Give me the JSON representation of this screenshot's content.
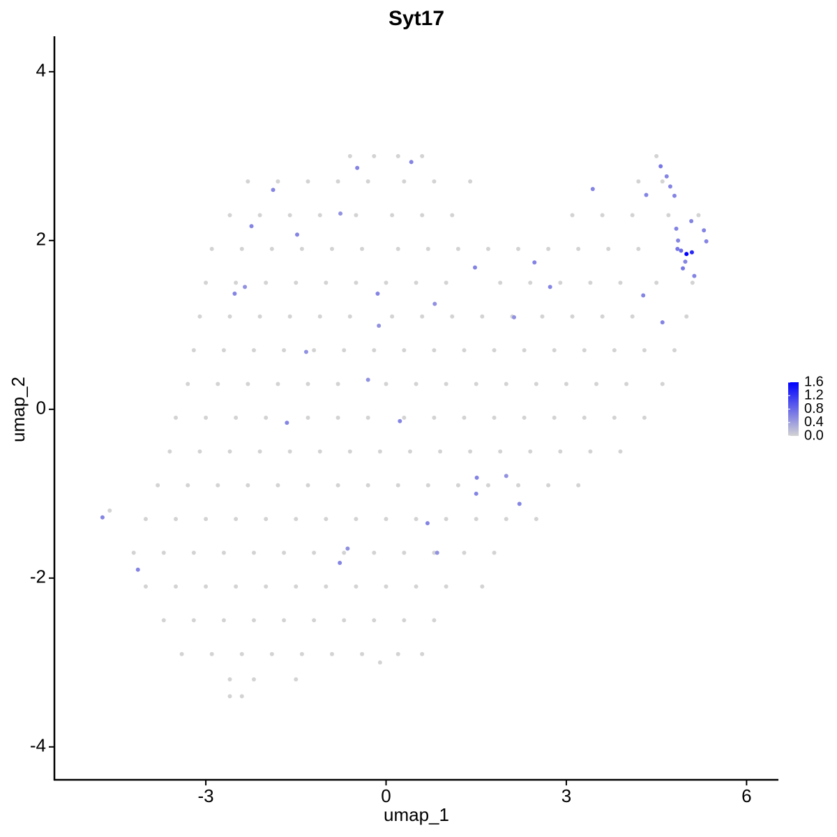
{
  "chart_data": {
    "type": "scatter",
    "title": "Syt17",
    "x_label": "umap_1",
    "y_label": "umap_2",
    "xlim": [
      -5.52,
      6.53
    ],
    "ylim": [
      -4.39,
      4.42
    ],
    "xticks": [
      -3,
      0,
      3,
      6
    ],
    "yticks": [
      -4,
      -2,
      0,
      2,
      4
    ],
    "color_low": "#d3d3d3",
    "color_high": "#0000ff",
    "colorbar_lim": [
      0,
      1.6
    ],
    "colorbar_ticks": [
      {
        "value": 0,
        "label": "0.0"
      },
      0.4,
      0.8,
      1.2,
      1.6
    ],
    "x": [
      -0.6,
      -0.2,
      0.2,
      0.6,
      4.5,
      -2.3,
      -1.8,
      -1.3,
      -0.8,
      -0.3,
      0.3,
      0.8,
      1.4,
      4.2,
      4.6,
      -2.6,
      -2.1,
      -1.6,
      -1.1,
      -0.5,
      0.1,
      0.6,
      1.1,
      3.1,
      3.6,
      4.1,
      4.7,
      5.2,
      -2.9,
      -2.4,
      -1.9,
      -1.4,
      -0.9,
      -0.4,
      0.2,
      0.7,
      1.2,
      1.7,
      2.2,
      2.7,
      3.2,
      3.7,
      4.2,
      -3.0,
      -2.5,
      -2.0,
      -1.5,
      -1.0,
      -0.5,
      0.0,
      0.5,
      1.0,
      1.9,
      2.4,
      2.9,
      3.4,
      3.9,
      4.5,
      5.1,
      -3.1,
      -2.6,
      -2.1,
      -1.6,
      -1.1,
      -0.6,
      0.1,
      0.6,
      1.1,
      1.6,
      2.1,
      2.6,
      3.1,
      3.6,
      4.1,
      5.0,
      -3.2,
      -2.7,
      -2.2,
      -1.7,
      -1.2,
      -0.7,
      -0.2,
      0.3,
      0.8,
      1.3,
      1.8,
      2.3,
      2.8,
      3.3,
      3.8,
      4.3,
      4.8,
      -3.3,
      -2.8,
      -2.3,
      -1.8,
      -1.3,
      -0.8,
      0.0,
      0.5,
      1.0,
      1.5,
      2.0,
      2.5,
      3.0,
      3.5,
      4.0,
      4.6,
      -3.5,
      -3.0,
      -2.5,
      -2.0,
      -1.3,
      -0.8,
      -0.3,
      0.3,
      0.8,
      1.3,
      1.8,
      2.3,
      2.8,
      3.3,
      3.8,
      4.3,
      -3.6,
      -3.1,
      -2.6,
      -2.1,
      -1.6,
      -1.1,
      -0.6,
      -0.1,
      0.4,
      0.9,
      1.4,
      1.9,
      2.4,
      2.9,
      3.4,
      3.9,
      -3.8,
      -3.3,
      -2.8,
      -2.3,
      -1.8,
      -1.3,
      -0.8,
      -0.3,
      0.2,
      0.7,
      1.2,
      1.7,
      2.2,
      2.7,
      3.2,
      -4.0,
      -3.5,
      -3.0,
      -2.5,
      -2.0,
      -1.5,
      -1.0,
      -0.5,
      0.0,
      0.5,
      1.0,
      1.5,
      2.0,
      2.5,
      -4.6,
      -4.2,
      -3.7,
      -3.2,
      -2.7,
      -2.2,
      -1.7,
      -1.2,
      -0.7,
      -0.2,
      0.3,
      0.8,
      1.3,
      1.8,
      -4.0,
      -3.5,
      -3.0,
      -2.5,
      -2.0,
      -1.5,
      -1.0,
      -0.5,
      0.0,
      0.5,
      1.0,
      1.6,
      -3.7,
      -3.2,
      -2.7,
      -2.2,
      -1.7,
      -1.2,
      -0.7,
      -0.2,
      0.3,
      0.8,
      -3.4,
      -2.9,
      -2.4,
      -1.9,
      -1.4,
      -0.9,
      -0.4,
      0.2,
      0.6,
      -2.6,
      -2.2,
      -1.5,
      -0.1,
      -2.6,
      -2.4,
      -4.72,
      -4.13,
      -2.24,
      -2.52,
      -2.35,
      -1.88,
      -1.48,
      -1.33,
      -1.65,
      -0.76,
      -0.48,
      -0.14,
      -0.12,
      -0.3,
      0.23,
      0.42,
      0.81,
      1.48,
      1.51,
      1.5,
      2.0,
      2.22,
      2.13,
      2.47,
      2.73,
      3.44,
      0.69,
      0.85,
      -0.64,
      -0.77,
      4.28,
      4.33,
      4.57,
      4.67,
      4.73,
      4.8,
      4.6,
      4.83,
      4.86,
      4.85,
      4.91,
      5.0,
      5.09,
      4.94,
      4.98,
      5.08,
      5.13,
      5.29,
      5.33
    ],
    "y": [
      3.0,
      3.0,
      3.0,
      3.0,
      3.0,
      2.7,
      2.7,
      2.7,
      2.7,
      2.7,
      2.7,
      2.7,
      2.7,
      2.7,
      2.7,
      2.3,
      2.3,
      2.3,
      2.3,
      2.3,
      2.3,
      2.3,
      2.3,
      2.3,
      2.3,
      2.3,
      2.3,
      2.3,
      1.9,
      1.9,
      1.9,
      1.9,
      1.9,
      1.9,
      1.9,
      1.9,
      1.9,
      1.9,
      1.9,
      1.9,
      1.9,
      1.9,
      1.9,
      1.5,
      1.5,
      1.5,
      1.5,
      1.5,
      1.5,
      1.5,
      1.5,
      1.5,
      1.5,
      1.5,
      1.5,
      1.5,
      1.5,
      1.5,
      1.5,
      1.1,
      1.1,
      1.1,
      1.1,
      1.1,
      1.1,
      1.1,
      1.1,
      1.1,
      1.1,
      1.1,
      1.1,
      1.1,
      1.1,
      1.1,
      1.1,
      0.7,
      0.7,
      0.7,
      0.7,
      0.7,
      0.7,
      0.7,
      0.7,
      0.7,
      0.7,
      0.7,
      0.7,
      0.7,
      0.7,
      0.7,
      0.7,
      0.7,
      0.3,
      0.3,
      0.3,
      0.3,
      0.3,
      0.3,
      0.3,
      0.3,
      0.3,
      0.3,
      0.3,
      0.3,
      0.3,
      0.3,
      0.3,
      0.3,
      -0.1,
      -0.1,
      -0.1,
      -0.1,
      -0.1,
      -0.1,
      -0.1,
      -0.1,
      -0.1,
      -0.1,
      -0.1,
      -0.1,
      -0.1,
      -0.1,
      -0.1,
      -0.1,
      -0.5,
      -0.5,
      -0.5,
      -0.5,
      -0.5,
      -0.5,
      -0.5,
      -0.5,
      -0.5,
      -0.5,
      -0.5,
      -0.5,
      -0.5,
      -0.5,
      -0.5,
      -0.5,
      -0.9,
      -0.9,
      -0.9,
      -0.9,
      -0.9,
      -0.9,
      -0.9,
      -0.9,
      -0.9,
      -0.9,
      -0.9,
      -0.9,
      -0.9,
      -0.9,
      -0.9,
      -1.3,
      -1.3,
      -1.3,
      -1.3,
      -1.3,
      -1.3,
      -1.3,
      -1.3,
      -1.3,
      -1.3,
      -1.3,
      -1.3,
      -1.3,
      -1.3,
      -1.2,
      -1.7,
      -1.7,
      -1.7,
      -1.7,
      -1.7,
      -1.7,
      -1.7,
      -1.7,
      -1.7,
      -1.7,
      -1.7,
      -1.7,
      -1.7,
      -2.1,
      -2.1,
      -2.1,
      -2.1,
      -2.1,
      -2.1,
      -2.1,
      -2.1,
      -2.1,
      -2.1,
      -2.1,
      -2.1,
      -2.5,
      -2.5,
      -2.5,
      -2.5,
      -2.5,
      -2.5,
      -2.5,
      -2.5,
      -2.5,
      -2.5,
      -2.9,
      -2.9,
      -2.9,
      -2.9,
      -2.9,
      -2.9,
      -2.9,
      -2.9,
      -2.9,
      -3.2,
      -3.2,
      -3.2,
      -3.0,
      -3.4,
      -3.4,
      -1.28,
      -1.9,
      2.17,
      1.37,
      1.45,
      2.6,
      2.07,
      0.68,
      -0.16,
      2.32,
      2.86,
      1.37,
      0.99,
      0.35,
      -0.14,
      2.93,
      1.25,
      1.68,
      -0.81,
      -1.0,
      -0.79,
      -1.12,
      1.09,
      1.74,
      1.45,
      2.61,
      -1.35,
      -1.7,
      -1.65,
      -1.82,
      1.35,
      2.54,
      2.88,
      2.76,
      2.64,
      2.53,
      1.03,
      2.14,
      2.0,
      1.9,
      1.88,
      1.84,
      1.86,
      1.67,
      1.75,
      2.23,
      1.58,
      2.12,
      1.99
    ],
    "values": [
      0,
      0,
      0,
      0,
      0,
      0,
      0,
      0,
      0,
      0,
      0,
      0,
      0,
      0,
      0,
      0,
      0,
      0,
      0,
      0,
      0,
      0,
      0,
      0,
      0,
      0,
      0,
      0,
      0,
      0,
      0,
      0,
      0,
      0,
      0,
      0,
      0,
      0,
      0,
      0,
      0,
      0,
      0,
      0,
      0,
      0,
      0,
      0,
      0,
      0,
      0,
      0,
      0,
      0,
      0,
      0,
      0,
      0,
      0,
      0,
      0,
      0,
      0,
      0,
      0,
      0,
      0,
      0,
      0,
      0,
      0,
      0,
      0,
      0,
      0,
      0,
      0,
      0,
      0,
      0,
      0,
      0,
      0,
      0,
      0,
      0,
      0,
      0,
      0,
      0,
      0,
      0,
      0,
      0,
      0,
      0,
      0,
      0,
      0,
      0,
      0,
      0,
      0,
      0,
      0,
      0,
      0,
      0,
      0,
      0,
      0,
      0,
      0,
      0,
      0,
      0,
      0,
      0,
      0,
      0,
      0,
      0,
      0,
      0,
      0,
      0,
      0,
      0,
      0,
      0,
      0,
      0,
      0,
      0,
      0,
      0,
      0,
      0,
      0,
      0,
      0,
      0,
      0,
      0,
      0,
      0,
      0,
      0,
      0,
      0,
      0,
      0,
      0,
      0,
      0,
      0,
      0,
      0,
      0,
      0,
      0,
      0,
      0,
      0,
      0,
      0,
      0,
      0,
      0,
      0,
      0,
      0,
      0,
      0,
      0,
      0,
      0,
      0,
      0,
      0,
      0,
      0,
      0,
      0,
      0,
      0,
      0,
      0,
      0,
      0,
      0,
      0,
      0,
      0,
      0,
      0,
      0,
      0,
      0,
      0,
      0,
      0,
      0,
      0,
      0,
      0,
      0,
      0,
      0,
      0,
      0,
      0,
      0,
      0,
      0,
      0,
      0,
      0,
      0,
      0,
      0.6,
      0.6,
      0.6,
      0.6,
      0.5,
      0.6,
      0.6,
      0.5,
      0.6,
      0.5,
      0.6,
      0.6,
      0.5,
      0.5,
      0.6,
      0.6,
      0.5,
      0.6,
      0.6,
      0.6,
      0.5,
      0.6,
      0.5,
      0.6,
      0.6,
      0.6,
      0.6,
      0.5,
      0.5,
      0.6,
      0.6,
      0.6,
      0.7,
      0.6,
      0.6,
      0.6,
      0.6,
      0.6,
      0.6,
      0.7,
      0.8,
      1.6,
      1.3,
      0.7,
      0.6,
      0.6,
      0.6,
      0.6,
      0.6
    ]
  }
}
